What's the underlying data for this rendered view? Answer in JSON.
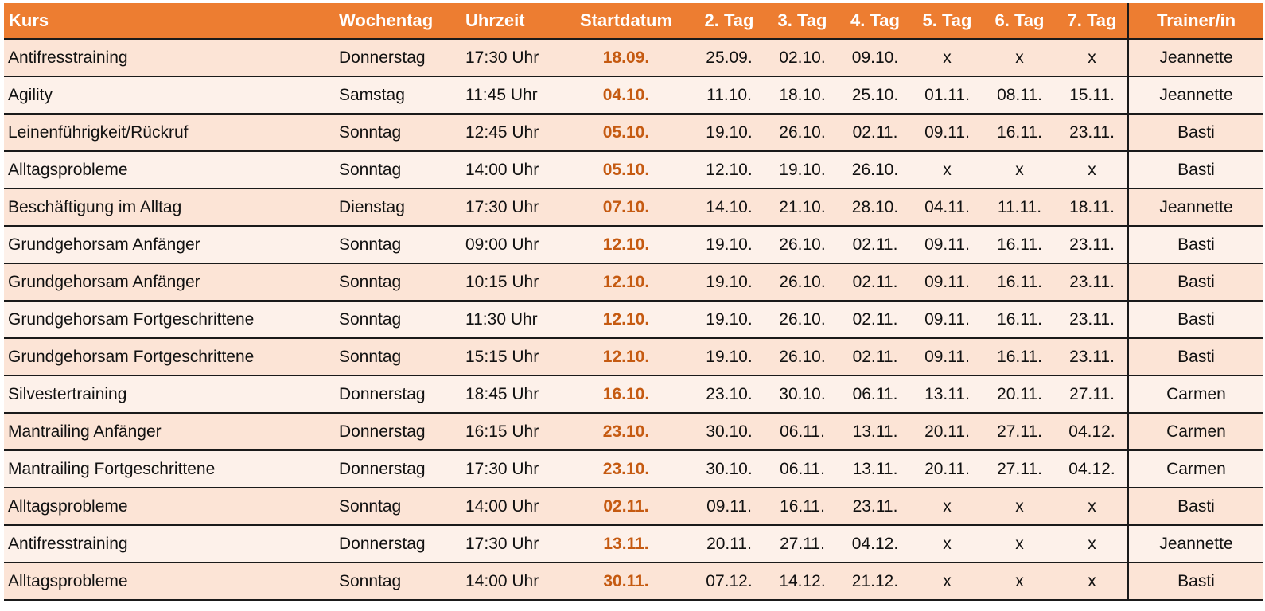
{
  "table": {
    "headers": {
      "kurs": "Kurs",
      "wochentag": "Wochentag",
      "uhrzeit": "Uhrzeit",
      "startdatum": "Startdatum",
      "tag2": "2. Tag",
      "tag3": "3. Tag",
      "tag4": "4. Tag",
      "tag5": "5. Tag",
      "tag6": "6. Tag",
      "tag7": "7. Tag",
      "trainer": "Trainer/in"
    },
    "rows": [
      {
        "kurs": "Antifresstraining",
        "wochentag": "Donnerstag",
        "uhrzeit": "17:30 Uhr",
        "startdatum": "18.09.",
        "tag2": "25.09.",
        "tag3": "02.10.",
        "tag4": "09.10.",
        "tag5": "x",
        "tag6": "x",
        "tag7": "x",
        "trainer": "Jeannette"
      },
      {
        "kurs": "Agility",
        "wochentag": "Samstag",
        "uhrzeit": "11:45 Uhr",
        "startdatum": "04.10.",
        "tag2": "11.10.",
        "tag3": "18.10.",
        "tag4": "25.10.",
        "tag5": "01.11.",
        "tag6": "08.11.",
        "tag7": "15.11.",
        "trainer": "Jeannette"
      },
      {
        "kurs": "Leinenführigkeit/Rückruf",
        "wochentag": "Sonntag",
        "uhrzeit": "12:45 Uhr",
        "startdatum": "05.10.",
        "tag2": "19.10.",
        "tag3": "26.10.",
        "tag4": "02.11.",
        "tag5": "09.11.",
        "tag6": "16.11.",
        "tag7": "23.11.",
        "trainer": "Basti"
      },
      {
        "kurs": "Alltagsprobleme",
        "wochentag": "Sonntag",
        "uhrzeit": "14:00 Uhr",
        "startdatum": "05.10.",
        "tag2": "12.10.",
        "tag3": "19.10.",
        "tag4": "26.10.",
        "tag5": "x",
        "tag6": "x",
        "tag7": "x",
        "trainer": "Basti"
      },
      {
        "kurs": "Beschäftigung im Alltag",
        "wochentag": "Dienstag",
        "uhrzeit": "17:30 Uhr",
        "startdatum": "07.10.",
        "tag2": "14.10.",
        "tag3": "21.10.",
        "tag4": "28.10.",
        "tag5": "04.11.",
        "tag6": "11.11.",
        "tag7": "18.11.",
        "trainer": "Jeannette"
      },
      {
        "kurs": "Grundgehorsam Anfänger",
        "wochentag": "Sonntag",
        "uhrzeit": "09:00 Uhr",
        "startdatum": "12.10.",
        "tag2": "19.10.",
        "tag3": "26.10.",
        "tag4": "02.11.",
        "tag5": "09.11.",
        "tag6": "16.11.",
        "tag7": "23.11.",
        "trainer": "Basti"
      },
      {
        "kurs": "Grundgehorsam Anfänger",
        "wochentag": "Sonntag",
        "uhrzeit": "10:15 Uhr",
        "startdatum": "12.10.",
        "tag2": "19.10.",
        "tag3": "26.10.",
        "tag4": "02.11.",
        "tag5": "09.11.",
        "tag6": "16.11.",
        "tag7": "23.11.",
        "trainer": "Basti"
      },
      {
        "kurs": "Grundgehorsam Fortgeschrittene",
        "wochentag": "Sonntag",
        "uhrzeit": "11:30 Uhr",
        "startdatum": "12.10.",
        "tag2": "19.10.",
        "tag3": "26.10.",
        "tag4": "02.11.",
        "tag5": "09.11.",
        "tag6": "16.11.",
        "tag7": "23.11.",
        "trainer": "Basti"
      },
      {
        "kurs": "Grundgehorsam Fortgeschrittene",
        "wochentag": "Sonntag",
        "uhrzeit": "15:15 Uhr",
        "startdatum": "12.10.",
        "tag2": "19.10.",
        "tag3": "26.10.",
        "tag4": "02.11.",
        "tag5": "09.11.",
        "tag6": "16.11.",
        "tag7": "23.11.",
        "trainer": "Basti"
      },
      {
        "kurs": "Silvestertraining",
        "wochentag": "Donnerstag",
        "uhrzeit": "18:45 Uhr",
        "startdatum": "16.10.",
        "tag2": "23.10.",
        "tag3": "30.10.",
        "tag4": "06.11.",
        "tag5": "13.11.",
        "tag6": "20.11.",
        "tag7": "27.11.",
        "trainer": "Carmen"
      },
      {
        "kurs": "Mantrailing Anfänger",
        "wochentag": "Donnerstag",
        "uhrzeit": "16:15 Uhr",
        "startdatum": "23.10.",
        "tag2": "30.10.",
        "tag3": "06.11.",
        "tag4": "13.11.",
        "tag5": "20.11.",
        "tag6": "27.11.",
        "tag7": "04.12.",
        "trainer": "Carmen"
      },
      {
        "kurs": "Mantrailing Fortgeschrittene",
        "wochentag": "Donnerstag",
        "uhrzeit": "17:30 Uhr",
        "startdatum": "23.10.",
        "tag2": "30.10.",
        "tag3": "06.11.",
        "tag4": "13.11.",
        "tag5": "20.11.",
        "tag6": "27.11.",
        "tag7": "04.12.",
        "trainer": "Carmen"
      },
      {
        "kurs": "Alltagsprobleme",
        "wochentag": "Sonntag",
        "uhrzeit": "14:00 Uhr",
        "startdatum": "02.11.",
        "tag2": "09.11.",
        "tag3": "16.11.",
        "tag4": "23.11.",
        "tag5": "x",
        "tag6": "x",
        "tag7": "x",
        "trainer": "Basti"
      },
      {
        "kurs": "Antifresstraining",
        "wochentag": "Donnerstag",
        "uhrzeit": "17:30 Uhr",
        "startdatum": "13.11.",
        "tag2": "20.11.",
        "tag3": "27.11.",
        "tag4": "04.12.",
        "tag5": "x",
        "tag6": "x",
        "tag7": "x",
        "trainer": "Jeannette"
      },
      {
        "kurs": "Alltagsprobleme",
        "wochentag": "Sonntag",
        "uhrzeit": "14:00 Uhr",
        "startdatum": "30.11.",
        "tag2": "07.12.",
        "tag3": "14.12.",
        "tag4": "21.12.",
        "tag5": "x",
        "tag6": "x",
        "tag7": "x",
        "trainer": "Basti"
      }
    ]
  },
  "colors": {
    "header_bg": "#ED7D31",
    "header_text": "#FFFFFF",
    "row_odd_bg": "#FCE4D6",
    "row_even_bg": "#FDF1EA",
    "startdatum_text": "#C55A11"
  }
}
